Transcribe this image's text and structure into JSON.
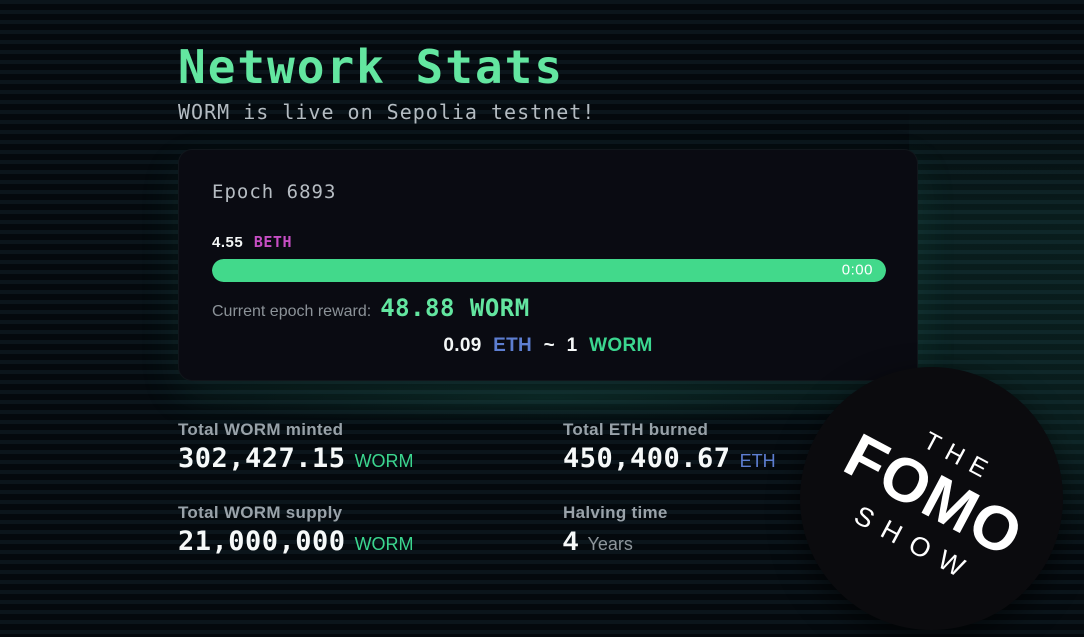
{
  "page": {
    "title": "Network Stats",
    "subtitle": "WORM is live on Sepolia testnet!"
  },
  "epoch_card": {
    "epoch_label": "Epoch 6893",
    "beth_value": "4.55",
    "beth_unit": "BETH",
    "progress_percent": 100,
    "timer": "0:00",
    "reward_label": "Current epoch reward:",
    "reward_value": "48.88 WORM",
    "ratio": {
      "eth_value": "0.09",
      "eth_unit": "ETH",
      "tilde": "~",
      "worm_value": "1",
      "worm_unit": "WORM"
    }
  },
  "stats": [
    {
      "label": "Total WORM minted",
      "value": "302,427.15",
      "unit": "WORM"
    },
    {
      "label": "Total ETH burned",
      "value": "450,400.67",
      "unit": "ETH"
    },
    {
      "label": "Total WORM supply",
      "value": "21,000,000",
      "unit": "WORM"
    },
    {
      "label": "Halving time",
      "value": "4",
      "unit": "Years"
    }
  ],
  "badge": {
    "line1": "THE",
    "line2": "FOMO",
    "line3": "SHOW"
  },
  "colors": {
    "accent_green": "#63e6a0",
    "bar_green": "#42d98b",
    "worm_green": "#3bd68f",
    "eth_blue": "#5d7ed1",
    "beth_pink": "#c74ec4",
    "label_gray": "#99a2a9",
    "text_light": "#eef2f3",
    "card_bg": "#0a0b12"
  }
}
